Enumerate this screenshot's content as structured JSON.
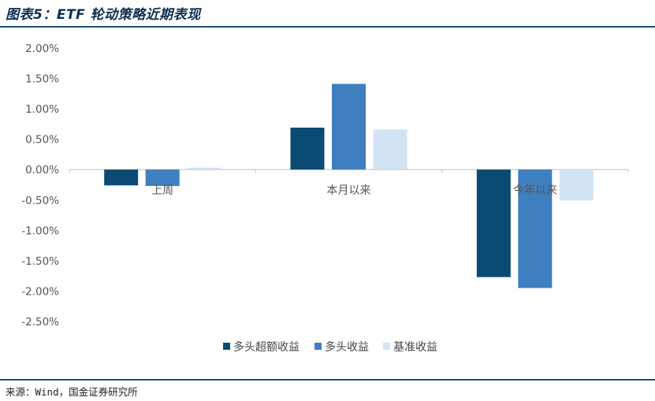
{
  "header": {
    "title": "图表5：ETF 轮动策略近期表现"
  },
  "footer": {
    "source": "来源：Wind，国金证券研究所"
  },
  "chart_data": {
    "type": "bar",
    "categories": [
      "上周",
      "本月以来",
      "今年以来"
    ],
    "series": [
      {
        "name": "多头超额收益",
        "values": [
          -0.26,
          0.69,
          -1.77
        ],
        "color": "#0b4a73"
      },
      {
        "name": "多头收益",
        "values": [
          -0.27,
          1.41,
          -1.95
        ],
        "color": "#3f7fbf"
      },
      {
        "name": "基准收益",
        "values": [
          0.03,
          0.66,
          -0.51
        ],
        "color": "#d2e3f3"
      }
    ],
    "ylim": [
      -2.5,
      2.0
    ],
    "yticks": [
      2.0,
      1.5,
      1.0,
      0.5,
      0.0,
      -0.5,
      -1.0,
      -1.5,
      -2.0,
      -2.5
    ],
    "ytick_labels": [
      "2.00%",
      "1.50%",
      "1.00%",
      "0.50%",
      "0.00%",
      "-0.50%",
      "-1.00%",
      "-1.50%",
      "-2.00%",
      "-2.50%"
    ],
    "grid": false,
    "legend": "bottom-center",
    "xlabel": "",
    "ylabel": ""
  }
}
